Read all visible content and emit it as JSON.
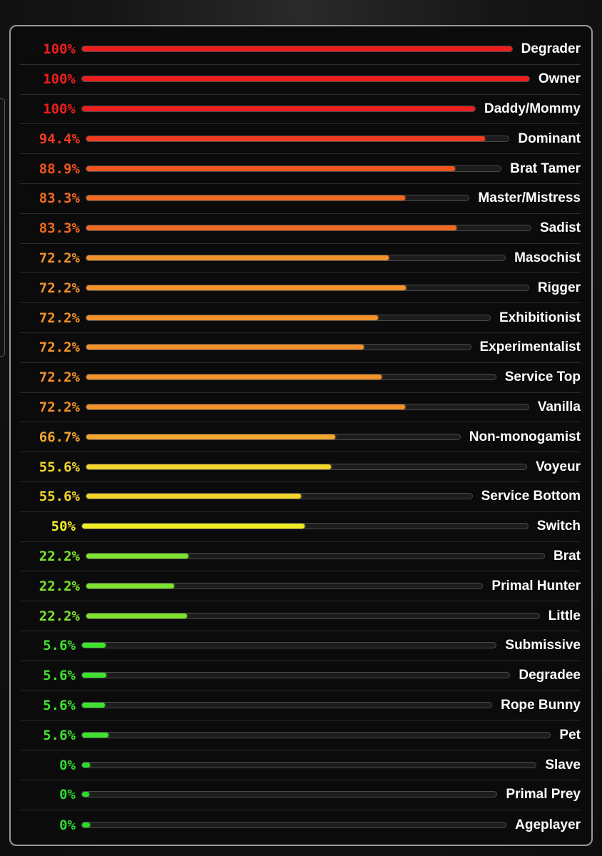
{
  "chart_data": {
    "type": "bar",
    "orientation": "horizontal",
    "value_unit": "%",
    "xlim": [
      0,
      100
    ],
    "grid": false,
    "legend": "none",
    "items": [
      {
        "label": "Degrader",
        "value": 100,
        "display": "100%",
        "color": "#f01d1d"
      },
      {
        "label": "Owner",
        "value": 100,
        "display": "100%",
        "color": "#f01d1d"
      },
      {
        "label": "Daddy/Mommy",
        "value": 100,
        "display": "100%",
        "color": "#f01d1d"
      },
      {
        "label": "Dominant",
        "value": 94.4,
        "display": "94.4%",
        "color": "#f23a1e"
      },
      {
        "label": "Brat Tamer",
        "value": 88.9,
        "display": "88.9%",
        "color": "#f2541f"
      },
      {
        "label": "Master/Mistress",
        "value": 83.3,
        "display": "83.3%",
        "color": "#f26a22"
      },
      {
        "label": "Sadist",
        "value": 83.3,
        "display": "83.3%",
        "color": "#f26a22"
      },
      {
        "label": "Masochist",
        "value": 72.2,
        "display": "72.2%",
        "color": "#f3922a"
      },
      {
        "label": "Rigger",
        "value": 72.2,
        "display": "72.2%",
        "color": "#f3922a"
      },
      {
        "label": "Exhibitionist",
        "value": 72.2,
        "display": "72.2%",
        "color": "#f3922a"
      },
      {
        "label": "Experimentalist",
        "value": 72.2,
        "display": "72.2%",
        "color": "#f3922a"
      },
      {
        "label": "Service Top",
        "value": 72.2,
        "display": "72.2%",
        "color": "#f3922a"
      },
      {
        "label": "Vanilla",
        "value": 72.2,
        "display": "72.2%",
        "color": "#f3922a"
      },
      {
        "label": "Non-monogamist",
        "value": 66.7,
        "display": "66.7%",
        "color": "#f4a52e"
      },
      {
        "label": "Voyeur",
        "value": 55.6,
        "display": "55.6%",
        "color": "#f3d52b"
      },
      {
        "label": "Service Bottom",
        "value": 55.6,
        "display": "55.6%",
        "color": "#f3d52b"
      },
      {
        "label": "Switch",
        "value": 50,
        "display": "50%",
        "color": "#f2ec25"
      },
      {
        "label": "Brat",
        "value": 22.2,
        "display": "22.2%",
        "color": "#7ee32e"
      },
      {
        "label": "Primal Hunter",
        "value": 22.2,
        "display": "22.2%",
        "color": "#7ee32e"
      },
      {
        "label": "Little",
        "value": 22.2,
        "display": "22.2%",
        "color": "#7ee32e"
      },
      {
        "label": "Submissive",
        "value": 5.6,
        "display": "5.6%",
        "color": "#3fe32e"
      },
      {
        "label": "Degradee",
        "value": 5.6,
        "display": "5.6%",
        "color": "#3fe32e"
      },
      {
        "label": "Rope Bunny",
        "value": 5.6,
        "display": "5.6%",
        "color": "#3fe32e"
      },
      {
        "label": "Pet",
        "value": 5.6,
        "display": "5.6%",
        "color": "#3fe32e"
      },
      {
        "label": "Slave",
        "value": 0,
        "display": "0%",
        "color": "#2ed92e"
      },
      {
        "label": "Primal Prey",
        "value": 0,
        "display": "0%",
        "color": "#2ed92e"
      },
      {
        "label": "Ageplayer",
        "value": 0,
        "display": "0%",
        "color": "#2ed92e"
      }
    ]
  }
}
